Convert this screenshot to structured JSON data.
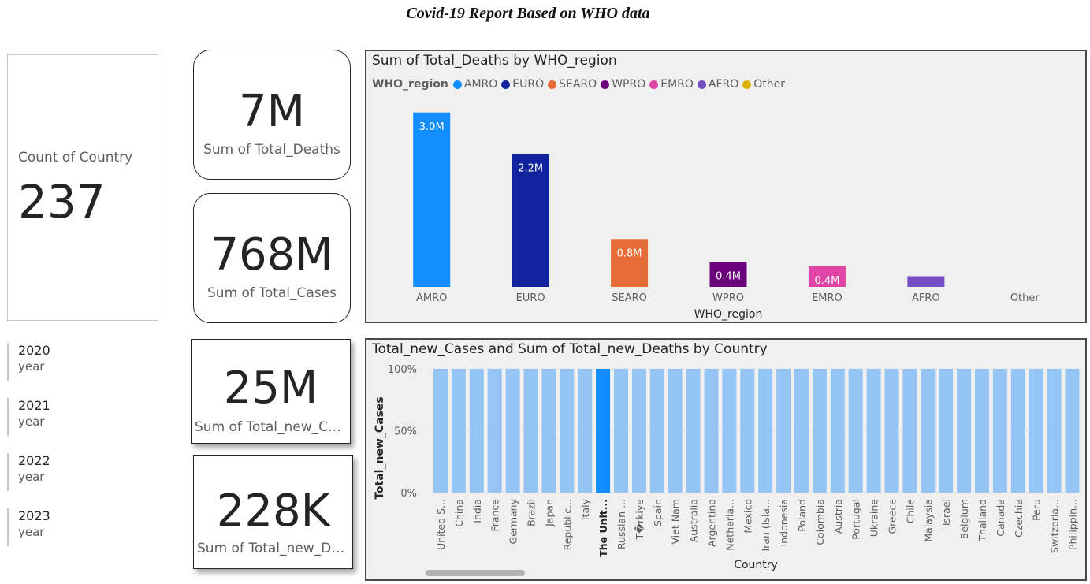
{
  "report": {
    "title": "Covid-19 Report Based on WHO data"
  },
  "cards": {
    "country": {
      "label": "Count of Country",
      "value": "237"
    },
    "total_deaths": {
      "value": "7M",
      "label": "Sum of Total_Deaths"
    },
    "total_cases": {
      "value": "768M",
      "label": "Sum of Total_Cases"
    },
    "new_cases": {
      "value": "25M",
      "label": "Sum of Total_new_Cases"
    },
    "new_deaths": {
      "value": "228K",
      "label": "Sum of Total_new_Dea..."
    }
  },
  "year_slicer": {
    "items": [
      {
        "year": "2020",
        "label": "year"
      },
      {
        "year": "2021",
        "label": "year"
      },
      {
        "year": "2022",
        "label": "year"
      },
      {
        "year": "2023",
        "label": "year"
      }
    ]
  },
  "chart_data": [
    {
      "type": "bar",
      "title": "Sum of Total_Deaths by WHO_region",
      "legend_title": "WHO_region",
      "legend_position": "top-left",
      "xlabel": "WHO_region",
      "ylabel": "",
      "categories": [
        "AMRO",
        "EURO",
        "SEARO",
        "WPRO",
        "EMRO",
        "AFRO",
        "Other"
      ],
      "values": [
        2.95,
        2.25,
        0.81,
        0.42,
        0.35,
        0.18,
        0
      ],
      "data_labels": [
        "3.0M",
        "2.2M",
        "0.8M",
        "0.4M",
        "0.4M",
        "",
        ""
      ],
      "colors": [
        "#118DFF",
        "#12239E",
        "#E66C37",
        "#6B007B",
        "#E044A7",
        "#744EC2",
        "#D9B300"
      ],
      "ylim": [
        0,
        3.0
      ],
      "grid": false
    },
    {
      "type": "bar",
      "title": "Total_new_Cases and Sum of Total_new_Deaths by Country",
      "xlabel": "Country",
      "ylabel": "Total_new_Cases",
      "ylim": [
        0,
        100
      ],
      "y_ticks": [
        "100%",
        "50%",
        "0%"
      ],
      "y_tick_values": [
        100,
        50,
        0
      ],
      "grid": true,
      "categories": [
        "United S...",
        "China",
        "India",
        "France",
        "Germany",
        "Brazil",
        "Japan",
        "Republic...",
        "Italy",
        "The Unit...",
        "Russian ...",
        "T�rkiye",
        "Spain",
        "Viet Nam",
        "Australia",
        "Argentina",
        "Netherla...",
        "Mexico",
        "Iran (Isla...",
        "Indonesia",
        "Poland",
        "Colombia",
        "Austria",
        "Portugal",
        "Ukraine",
        "Greece",
        "Chile",
        "Malaysia",
        "Israel",
        "Belgium",
        "Thailand",
        "Canada",
        "Czechia",
        "Peru",
        "Switzerla...",
        "Philippin..."
      ],
      "values": [
        100,
        100,
        100,
        100,
        100,
        100,
        100,
        100,
        100,
        100,
        100,
        100,
        100,
        100,
        100,
        100,
        100,
        100,
        100,
        100,
        100,
        100,
        100,
        100,
        100,
        100,
        100,
        100,
        100,
        100,
        100,
        100,
        100,
        100,
        100,
        100
      ],
      "highlighted": "The Unit...",
      "colors": {
        "bar": "#94C5F5",
        "highlight": "#118DFF"
      }
    }
  ]
}
